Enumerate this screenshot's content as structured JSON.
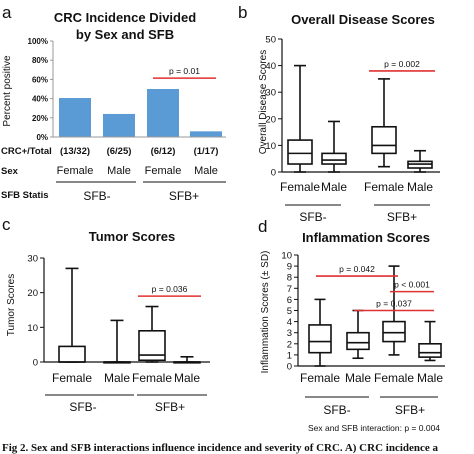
{
  "figure": {
    "caption": "Fig 2. Sex and SFB interactions influence incidence and severity of CRC. A) CRC incidence a"
  },
  "chart_data": [
    {
      "panel_letter": "a",
      "type": "bar",
      "title_lines": [
        "CRC Incidence Divided",
        "by Sex and SFB"
      ],
      "ylabel": "Percent positive",
      "ylim": [
        0,
        100
      ],
      "yticks": [
        "0%",
        "20%",
        "40%",
        "60%",
        "80%",
        "100%"
      ],
      "ytick_values": [
        0,
        20,
        40,
        60,
        80,
        100
      ],
      "bar_color": "#5b9bd5",
      "categories": [
        "Female",
        "Male",
        "Female",
        "Male"
      ],
      "values": [
        40.6,
        24.0,
        50.0,
        5.9
      ],
      "row_labels": {
        "counts": "CRC+/Total",
        "sex": "Sex",
        "sfb": "SFB Statis"
      },
      "counts": [
        "(13/32)",
        "(6/25)",
        "(6/12)",
        "(1/17)"
      ],
      "groups": [
        "SFB-",
        "SFB+"
      ],
      "annotations": [
        {
          "text": "p = 0.01",
          "from": 2,
          "to": 3,
          "y": 53,
          "color": "#e03030"
        }
      ]
    },
    {
      "panel_letter": "b",
      "type": "boxplot",
      "title": "Overall Disease Scores",
      "ylabel": "Overall Disease Scores",
      "ylim": [
        0,
        50
      ],
      "yticks": [
        0,
        10,
        20,
        30,
        40,
        50
      ],
      "categories": [
        "Female",
        "Male",
        "Female",
        "Male"
      ],
      "groups": [
        "SFB-",
        "SFB+"
      ],
      "boxes": [
        {
          "min": 0,
          "q1": 3,
          "median": 7,
          "q3": 12,
          "max": 40
        },
        {
          "min": 0,
          "q1": 3,
          "median": 4.5,
          "q3": 7,
          "max": 19
        },
        {
          "min": 2,
          "q1": 7,
          "median": 10,
          "q3": 17,
          "max": 35
        },
        {
          "min": 0,
          "q1": 1.5,
          "median": 3,
          "q3": 4,
          "max": 8
        }
      ],
      "annotations": [
        {
          "text": "p = 0.002",
          "from": 2,
          "to": 3,
          "y": 38,
          "color": "#e03030"
        }
      ]
    },
    {
      "panel_letter": "c",
      "type": "boxplot",
      "title": "Tumor Scores",
      "ylabel": "Tumor Scores",
      "ylim": [
        0,
        30
      ],
      "yticks": [
        0,
        10,
        20,
        30
      ],
      "categories": [
        "Female",
        "Male",
        "Female",
        "Male"
      ],
      "groups": [
        "SFB-",
        "SFB+"
      ],
      "boxes": [
        {
          "min": 0,
          "q1": 0,
          "median": 0,
          "q3": 4.5,
          "max": 27
        },
        {
          "min": 0,
          "q1": 0,
          "median": 0,
          "q3": 0,
          "max": 12
        },
        {
          "min": 0,
          "q1": 0.5,
          "median": 2,
          "q3": 9,
          "max": 16
        },
        {
          "min": 0,
          "q1": 0,
          "median": 0,
          "q3": 0,
          "max": 1.5
        }
      ],
      "annotations": [
        {
          "text": "p = 0.036",
          "from": 2,
          "to": 3,
          "y": 19,
          "color": "#e03030"
        }
      ]
    },
    {
      "panel_letter": "d",
      "type": "boxplot",
      "title": "Inflammation Scores",
      "ylabel": "Inflammation Scores (± SD)",
      "ylim": [
        0,
        10
      ],
      "yticks": [
        0,
        1,
        2,
        3,
        4,
        5,
        6,
        7,
        8,
        9,
        10
      ],
      "categories": [
        "Female",
        "Male",
        "Female",
        "Male"
      ],
      "groups": [
        "SFB-",
        "SFB+"
      ],
      "boxes": [
        {
          "min": 0,
          "q1": 1.2,
          "median": 2.2,
          "q3": 3.7,
          "max": 6
        },
        {
          "min": 0.7,
          "q1": 1.5,
          "median": 2.1,
          "q3": 3.0,
          "max": 5
        },
        {
          "min": 1.0,
          "q1": 2.2,
          "median": 3.0,
          "q3": 4.0,
          "max": 9
        },
        {
          "min": 0.5,
          "q1": 0.8,
          "median": 1.2,
          "q3": 2.0,
          "max": 4
        }
      ],
      "annotations": [
        {
          "text": "p = 0.042",
          "from": 0,
          "to": 2,
          "y": 8.1,
          "color": "#e03030"
        },
        {
          "text": "p < 0.001",
          "from": 2,
          "to": 3,
          "y": 6.7,
          "color": "#e03030"
        },
        {
          "text": "p = 0.037",
          "from": 1,
          "to": 3,
          "y": 5.0,
          "color": "#e03030"
        }
      ],
      "footnote": "Sex and SFB interaction: p = 0.004"
    }
  ]
}
